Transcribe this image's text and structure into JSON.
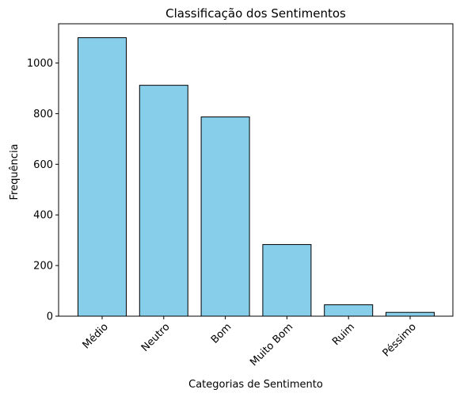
{
  "chart_data": {
    "type": "bar",
    "title": "Classificação dos Sentimentos",
    "xlabel": "Categorias de Sentimento",
    "ylabel": "Frequência",
    "categories": [
      "Médio",
      "Neutro",
      "Bom",
      "Muito Bom",
      "Ruim",
      "Péssimo"
    ],
    "values": [
      1100,
      912,
      787,
      283,
      45,
      15
    ],
    "ylim": [
      0,
      1155
    ],
    "yticks": [
      0,
      200,
      400,
      600,
      800,
      1000
    ],
    "grid": false,
    "legend": "none",
    "bar_color": "#87ceeb",
    "edge_color": "#000000",
    "x_tick_rotation": 45
  }
}
